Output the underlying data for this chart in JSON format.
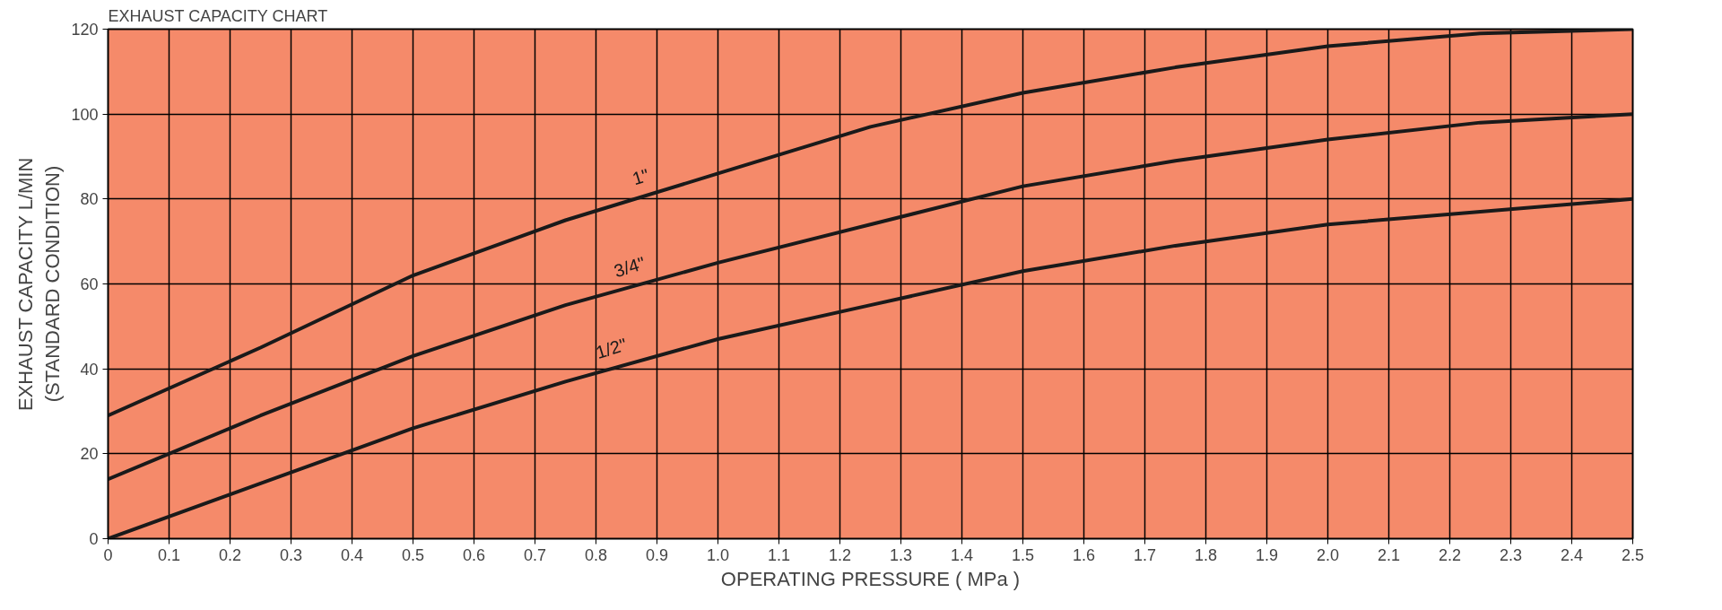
{
  "chart_data": {
    "type": "line",
    "title": "EXHAUST CAPACITY CHART",
    "xlabel": "OPERATING PRESSURE ( MPa )",
    "ylabel": "EXHAUST CAPACITY L/MIN\n(STANDARD CONDITION)",
    "x": [
      0,
      0.25,
      0.5,
      0.75,
      1.0,
      1.25,
      1.5,
      1.75,
      2.0,
      2.25,
      2.5
    ],
    "series": [
      {
        "name": "1\"",
        "color": "#1a1a1a",
        "values": [
          29,
          45,
          62,
          75,
          86,
          97,
          105,
          111,
          116,
          119,
          120
        ]
      },
      {
        "name": "3/4\"",
        "color": "#1a1a1a",
        "values": [
          14,
          29,
          43,
          55,
          65,
          74,
          83,
          89,
          94,
          98,
          100
        ]
      },
      {
        "name": "1/2\"",
        "color": "#1a1a1a",
        "values": [
          0,
          13,
          26,
          37,
          47,
          55,
          63,
          69,
          74,
          77,
          80
        ]
      }
    ],
    "xlim": [
      0,
      2.5
    ],
    "ylim": [
      0,
      120
    ],
    "xticks": [
      0,
      0.1,
      0.2,
      0.3,
      0.4,
      0.5,
      0.6,
      0.7,
      0.8,
      0.9,
      {
        "value": 1,
        "label": "1.0"
      },
      1.1,
      1.2,
      1.3,
      1.4,
      1.5,
      1.6,
      1.7,
      1.8,
      1.9,
      {
        "value": 2,
        "label": "2.0"
      },
      2.1,
      2.2,
      2.3,
      2.4,
      2.5
    ],
    "yticks": [
      0,
      20,
      40,
      60,
      80,
      100,
      120
    ],
    "grid": true,
    "marker": "none",
    "line_style": "solid"
  }
}
